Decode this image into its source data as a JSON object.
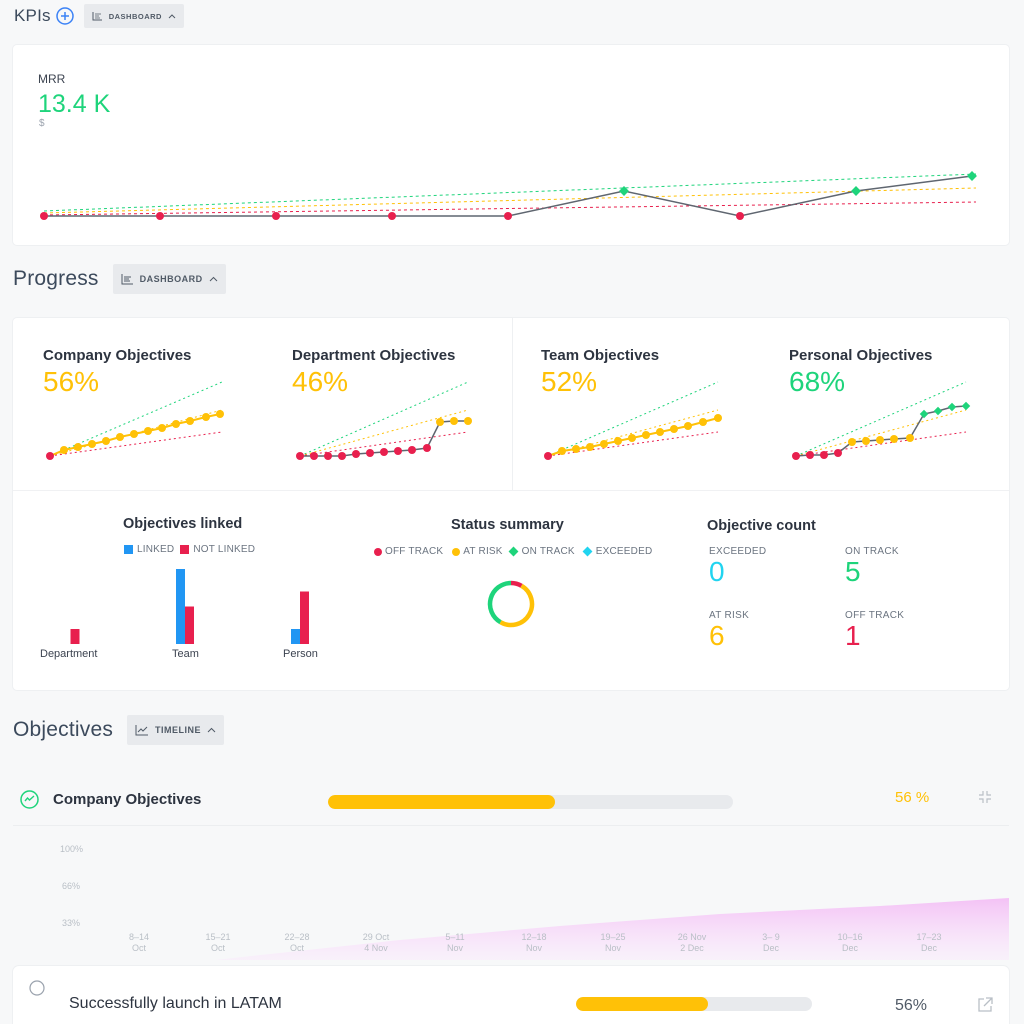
{
  "kpis": {
    "title": "KPIs",
    "view_label": "DASHBOARD",
    "mrr": {
      "label": "MRR",
      "value": "13.4 K",
      "unit": "$"
    }
  },
  "progress": {
    "title": "Progress",
    "view_label": "DASHBOARD",
    "cards": [
      {
        "title": "Company Objectives",
        "percent": "56%",
        "color": "#ffc107"
      },
      {
        "title": "Department Objectives",
        "percent": "46%",
        "color": "#ffc107"
      },
      {
        "title": "Team Objectives",
        "percent": "52%",
        "color": "#ffc107"
      },
      {
        "title": "Personal Objectives",
        "percent": "68%",
        "color": "#1ed47b"
      }
    ],
    "objectives_linked": {
      "title": "Objectives linked",
      "legend": [
        "LINKED",
        "NOT LINKED"
      ],
      "categories": [
        "Department",
        "Team",
        "Person"
      ],
      "linked": [
        0,
        5,
        1
      ],
      "not_linked": [
        1,
        2.5,
        3.5
      ]
    },
    "status_summary": {
      "title": "Status summary",
      "legend": [
        "OFF TRACK",
        "AT RISK",
        "ON TRACK",
        "EXCEEDED"
      ],
      "values": [
        1,
        6,
        5,
        0
      ]
    },
    "objective_count": {
      "title": "Objective count",
      "exceeded_label": "EXCEEDED",
      "exceeded": "0",
      "on_track_label": "ON TRACK",
      "on_track": "5",
      "at_risk_label": "AT RISK",
      "at_risk": "6",
      "off_track_label": "OFF TRACK",
      "off_track": "1"
    }
  },
  "objectives": {
    "title": "Objectives",
    "view_label": "TIMELINE",
    "group": {
      "title": "Company Objectives",
      "percent": "56 %",
      "progress": 0.56
    },
    "timeline": {
      "y_ticks": [
        "100%",
        "66%",
        "33%"
      ],
      "x_ticks": [
        [
          "8–14",
          "Oct"
        ],
        [
          "15–21",
          "Oct"
        ],
        [
          "22–28",
          "Oct"
        ],
        [
          "29 Oct",
          "4 Nov"
        ],
        [
          "5–11",
          "Nov"
        ],
        [
          "12–18",
          "Nov"
        ],
        [
          "19–25",
          "Nov"
        ],
        [
          "26 Nov",
          "2 Dec"
        ],
        [
          "3– 9",
          "Dec"
        ],
        [
          "10–16",
          "Dec"
        ],
        [
          "17–23",
          "Dec"
        ]
      ]
    },
    "items": [
      {
        "title": "Successfully launch in LATAM",
        "percent": "56%",
        "progress": 0.56
      }
    ]
  },
  "colors": {
    "off_track": "#e8204e",
    "at_risk": "#ffc107",
    "on_track": "#1ed47b",
    "exceeded": "#21d4f0",
    "linked": "#2196f3",
    "accent": "#3b82f6"
  }
}
